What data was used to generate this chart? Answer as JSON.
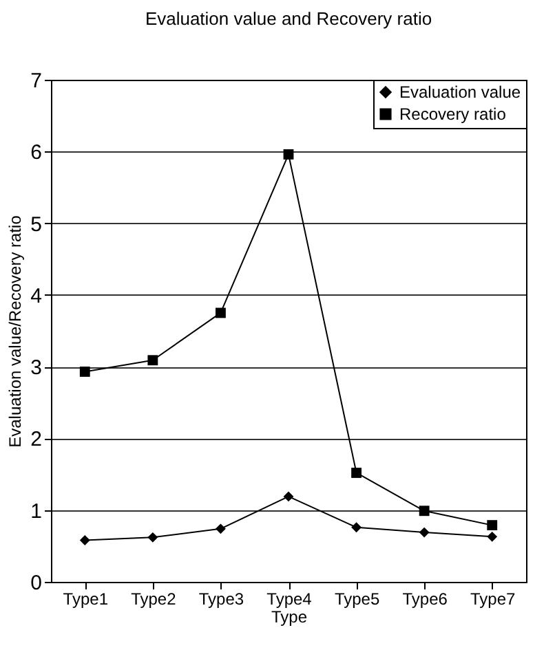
{
  "chart_data": {
    "type": "line",
    "title": "Evaluation value and Recovery ratio",
    "xlabel": "Type",
    "ylabel": "Evaluation value/Recovery ratio",
    "categories": [
      "Type1",
      "Type2",
      "Type3",
      "Type4",
      "Type5",
      "Type6",
      "Type7"
    ],
    "series": [
      {
        "name": "Evaluation value",
        "color": "#000000",
        "marker": "diamond",
        "values": [
          0.58,
          0.62,
          0.74,
          1.19,
          0.76,
          0.69,
          0.63
        ]
      },
      {
        "name": "Recovery ratio",
        "color": "#000000",
        "marker": "square",
        "values": [
          2.93,
          3.09,
          3.75,
          5.96,
          1.52,
          0.99,
          0.79
        ]
      }
    ],
    "ylim": [
      0,
      7
    ],
    "yticks": [
      0,
      1,
      2,
      3,
      4,
      5,
      6,
      7
    ],
    "grid": "y",
    "legend": "top right",
    "line_style": "solid"
  }
}
